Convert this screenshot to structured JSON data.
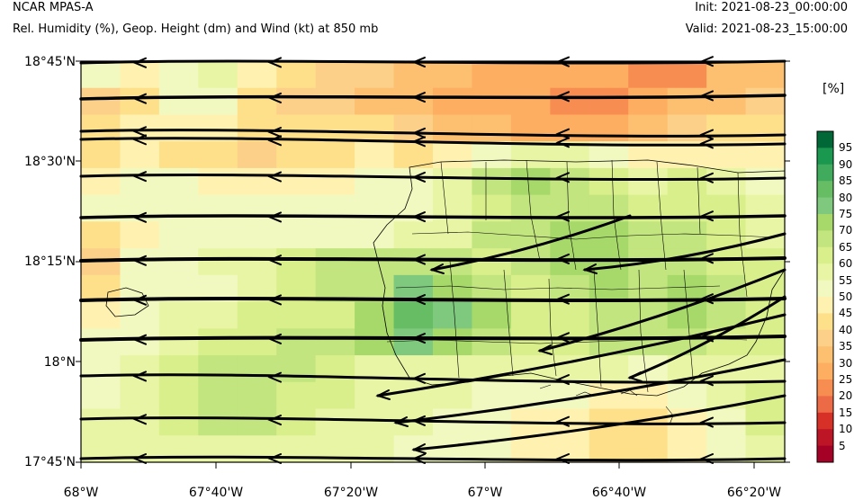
{
  "header": {
    "model": "NCAR MPAS-A",
    "subtitle": "Rel. Humidity (%), Geop. Height (dm) and Wind (kt) at 850 mb",
    "init": "Init: 2021-08-23_00:00:00",
    "valid": "Valid: 2021-08-23_15:00:00"
  },
  "map": {
    "lat_labels": [
      "18°45'N",
      "18°30'N",
      "18°15'N",
      "18°N",
      "17°45'N"
    ],
    "lon_labels": [
      "68°W",
      "67°40'W",
      "67°20'W",
      "67°W",
      "66°40'W",
      "66°20'W"
    ],
    "extent": {
      "lon_min": -68.0,
      "lon_max": -66.25,
      "lat_min": 17.75,
      "lat_max": 18.75
    },
    "humidity_grid_rows_north_to_south": [
      [
        55,
        50,
        55,
        60,
        50,
        45,
        40,
        40,
        35,
        35,
        30,
        30,
        30,
        30,
        25,
        25,
        35,
        35
      ],
      [
        40,
        45,
        55,
        55,
        45,
        40,
        40,
        35,
        35,
        30,
        30,
        30,
        25,
        25,
        30,
        35,
        35,
        40
      ],
      [
        45,
        50,
        50,
        50,
        45,
        45,
        45,
        45,
        40,
        35,
        35,
        30,
        30,
        30,
        35,
        40,
        45,
        45
      ],
      [
        45,
        50,
        45,
        45,
        40,
        45,
        45,
        50,
        45,
        50,
        55,
        60,
        60,
        55,
        50,
        50,
        50,
        50
      ],
      [
        50,
        55,
        55,
        50,
        50,
        50,
        50,
        55,
        55,
        60,
        70,
        75,
        70,
        65,
        60,
        65,
        60,
        55
      ],
      [
        55,
        55,
        55,
        55,
        55,
        55,
        55,
        55,
        55,
        60,
        65,
        70,
        70,
        70,
        65,
        65,
        65,
        60
      ],
      [
        45,
        50,
        55,
        55,
        55,
        55,
        55,
        55,
        60,
        60,
        70,
        70,
        75,
        75,
        70,
        70,
        65,
        60
      ],
      [
        40,
        55,
        55,
        60,
        60,
        65,
        70,
        70,
        70,
        70,
        65,
        70,
        75,
        75,
        70,
        70,
        65,
        65
      ],
      [
        45,
        55,
        55,
        55,
        60,
        65,
        70,
        70,
        80,
        75,
        70,
        65,
        70,
        75,
        70,
        75,
        70,
        65
      ],
      [
        50,
        55,
        60,
        60,
        65,
        65,
        65,
        75,
        85,
        80,
        75,
        65,
        65,
        70,
        70,
        75,
        70,
        65
      ],
      [
        55,
        55,
        60,
        65,
        65,
        70,
        70,
        75,
        80,
        75,
        70,
        65,
        65,
        70,
        70,
        70,
        65,
        65
      ],
      [
        55,
        60,
        65,
        70,
        70,
        70,
        65,
        60,
        60,
        60,
        60,
        60,
        60,
        60,
        55,
        60,
        60,
        60
      ],
      [
        55,
        60,
        65,
        70,
        70,
        65,
        65,
        60,
        60,
        60,
        55,
        55,
        55,
        50,
        50,
        55,
        60,
        65
      ],
      [
        60,
        60,
        65,
        70,
        70,
        65,
        60,
        60,
        60,
        55,
        55,
        50,
        50,
        45,
        45,
        50,
        55,
        65
      ],
      [
        60,
        60,
        60,
        60,
        60,
        60,
        60,
        60,
        55,
        55,
        55,
        50,
        50,
        45,
        45,
        50,
        55,
        60
      ]
    ]
  },
  "colorbar": {
    "unit": "[%]",
    "labels": [
      "95",
      "90",
      "85",
      "80",
      "75",
      "70",
      "65",
      "60",
      "55",
      "50",
      "45",
      "40",
      "35",
      "30",
      "25",
      "20",
      "15",
      "10",
      "5"
    ],
    "colors": [
      "#006837",
      "#1a9850",
      "#41ab5d",
      "#66bd63",
      "#7fc97f",
      "#a6d96a",
      "#c2e57f",
      "#d9ef8b",
      "#e8f5a4",
      "#f2f9c0",
      "#fff2b0",
      "#fee08b",
      "#fdd08a",
      "#fdbf70",
      "#fdae61",
      "#f88d52",
      "#ec6a45",
      "#d73027",
      "#bd1426",
      "#a50026"
    ]
  }
}
